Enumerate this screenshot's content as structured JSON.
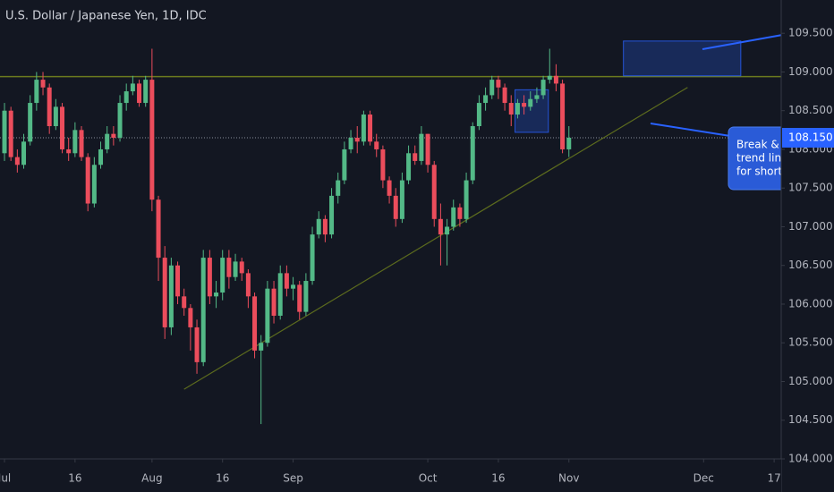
{
  "chart_data": {
    "type": "candlestick",
    "title": "U.S. Dollar / Japanese Yen, 1D, IDC",
    "up_color": "#53b987",
    "down_color": "#eb4d5c",
    "open": [
      107.95,
      108.5,
      107.9,
      107.8,
      108.1,
      108.6,
      108.9,
      108.8,
      108.3,
      108.55,
      108.0,
      107.95,
      108.25,
      107.9,
      107.3,
      107.8,
      108.0,
      108.2,
      108.15,
      108.6,
      108.75,
      108.85,
      108.6,
      108.9,
      107.35,
      106.6,
      105.7,
      106.5,
      106.1,
      105.95,
      105.7,
      105.25,
      106.6,
      106.1,
      106.15,
      106.6,
      106.35,
      106.55,
      106.4,
      106.1,
      105.4,
      105.5,
      106.2,
      105.85,
      106.4,
      106.2,
      106.25,
      105.9,
      106.3,
      106.9,
      107.1,
      106.9,
      107.4,
      107.6,
      108.0,
      108.15,
      108.1,
      108.45,
      108.1,
      108.0,
      107.6,
      107.4,
      107.1,
      107.6,
      107.95,
      107.85,
      108.2,
      107.8,
      107.1,
      106.9,
      107.0,
      107.25,
      107.1,
      107.6,
      108.3,
      108.6,
      108.7,
      108.9,
      108.8,
      108.6,
      108.45,
      108.6,
      108.55,
      108.65,
      108.7,
      108.9,
      108.95,
      108.85,
      108.0
    ],
    "high": [
      108.6,
      108.55,
      108.0,
      108.2,
      108.7,
      109.0,
      109.0,
      108.85,
      108.65,
      108.6,
      108.15,
      108.35,
      108.3,
      107.95,
      107.9,
      108.1,
      108.3,
      108.3,
      108.7,
      108.85,
      108.95,
      108.9,
      108.95,
      109.3,
      107.4,
      106.75,
      106.6,
      106.55,
      106.2,
      106.0,
      105.8,
      106.7,
      106.7,
      106.3,
      106.7,
      106.7,
      106.65,
      106.6,
      106.45,
      106.15,
      105.6,
      106.3,
      106.3,
      106.5,
      106.5,
      106.35,
      106.3,
      106.4,
      107.0,
      107.2,
      107.15,
      107.5,
      107.7,
      108.1,
      108.25,
      108.3,
      108.5,
      108.5,
      108.2,
      108.05,
      107.65,
      107.5,
      107.7,
      108.05,
      108.05,
      108.3,
      108.2,
      107.85,
      107.3,
      107.1,
      107.35,
      107.3,
      107.7,
      108.35,
      108.7,
      108.8,
      108.95,
      108.95,
      108.85,
      108.7,
      108.65,
      108.7,
      108.75,
      108.8,
      108.95,
      109.3,
      109.1,
      108.9,
      108.3
    ],
    "low": [
      107.85,
      107.85,
      107.7,
      107.75,
      108.05,
      108.5,
      108.7,
      108.2,
      108.25,
      107.95,
      107.85,
      107.9,
      107.85,
      107.2,
      107.25,
      107.75,
      107.95,
      108.05,
      108.1,
      108.5,
      108.7,
      108.55,
      108.55,
      107.2,
      106.3,
      105.55,
      105.6,
      106.0,
      105.85,
      105.4,
      105.1,
      105.2,
      106.0,
      105.95,
      106.05,
      106.2,
      106.3,
      106.3,
      105.95,
      105.3,
      104.45,
      105.45,
      105.75,
      105.8,
      106.1,
      106.05,
      105.8,
      105.85,
      106.25,
      106.85,
      106.8,
      106.85,
      107.3,
      107.55,
      107.95,
      107.95,
      108.05,
      108.05,
      107.9,
      107.5,
      107.3,
      107.0,
      107.05,
      107.55,
      107.8,
      107.8,
      107.7,
      107.0,
      106.5,
      106.5,
      106.95,
      107.0,
      107.05,
      107.55,
      108.25,
      108.5,
      108.65,
      108.65,
      108.5,
      108.3,
      108.4,
      108.45,
      108.5,
      108.6,
      108.65,
      108.85,
      108.75,
      107.95,
      107.9
    ],
    "close": [
      108.5,
      107.9,
      107.8,
      108.1,
      108.6,
      108.9,
      108.8,
      108.3,
      108.55,
      108.0,
      107.95,
      108.25,
      107.9,
      107.3,
      107.8,
      108.0,
      108.2,
      108.15,
      108.6,
      108.75,
      108.85,
      108.6,
      108.9,
      107.35,
      106.6,
      105.7,
      106.5,
      106.1,
      105.95,
      105.7,
      105.25,
      106.6,
      106.1,
      106.15,
      106.6,
      106.35,
      106.55,
      106.4,
      106.1,
      105.4,
      105.5,
      106.2,
      105.85,
      106.4,
      106.2,
      106.25,
      105.9,
      106.3,
      106.9,
      107.1,
      106.9,
      107.4,
      107.6,
      108.0,
      108.15,
      108.1,
      108.45,
      108.1,
      108.0,
      107.6,
      107.4,
      107.1,
      107.6,
      107.95,
      107.85,
      108.2,
      107.8,
      107.1,
      106.9,
      107.0,
      107.25,
      107.1,
      107.6,
      108.3,
      108.6,
      108.7,
      108.9,
      108.8,
      108.6,
      108.45,
      108.6,
      108.55,
      108.65,
      108.7,
      108.9,
      108.95,
      108.85,
      108.0,
      108.15
    ],
    "xlim": [
      -0.7,
      121.1
    ],
    "xticks": [
      {
        "value": 0,
        "label": "Jul"
      },
      {
        "value": 11,
        "label": "16"
      },
      {
        "value": 23,
        "label": "Aug"
      },
      {
        "value": 34,
        "label": "16"
      },
      {
        "value": 45,
        "label": "Sep"
      },
      {
        "value": 66,
        "label": "Oct"
      },
      {
        "value": 77,
        "label": "16"
      },
      {
        "value": 88,
        "label": "Nov"
      },
      {
        "value": 109,
        "label": "Dec"
      },
      {
        "value": 120,
        "label": "17"
      }
    ],
    "ylim": [
      104.0,
      109.93
    ],
    "yticks": [
      {
        "value": 109.5,
        "label": "109.500"
      },
      {
        "value": 109,
        "label": "109.000"
      },
      {
        "value": 108.5,
        "label": "108.500"
      },
      {
        "value": 108,
        "label": "108.000"
      },
      {
        "value": 107.5,
        "label": "107.500"
      },
      {
        "value": 107,
        "label": "107.000"
      },
      {
        "value": 106.5,
        "label": "106.500"
      },
      {
        "value": 106,
        "label": "106.000"
      },
      {
        "value": 105.5,
        "label": "105.500"
      },
      {
        "value": 105,
        "label": "105.000"
      },
      {
        "value": 104.5,
        "label": "104.500"
      },
      {
        "value": 104,
        "label": "104.000"
      }
    ],
    "last_price": {
      "value": 108.15,
      "label": "108.150",
      "color": "#2962ff"
    },
    "resistance": {
      "value": 108.94,
      "color": "#6b7a1e"
    },
    "trendline": {
      "x": [
        28,
        106.5
      ],
      "y": [
        104.9,
        108.8
      ],
      "color": "#5c6b1e"
    },
    "rectangles": [
      {
        "x": [
          96.5,
          114.8
        ],
        "y": [
          108.95,
          109.4
        ],
        "color": "#2962ff"
      },
      {
        "x": [
          79.6,
          84.8
        ],
        "y": [
          108.22,
          108.77
        ],
        "color": "#2962ff"
      }
    ],
    "annotation": [
      "Break &",
      "trend line",
      "for short"
    ]
  }
}
